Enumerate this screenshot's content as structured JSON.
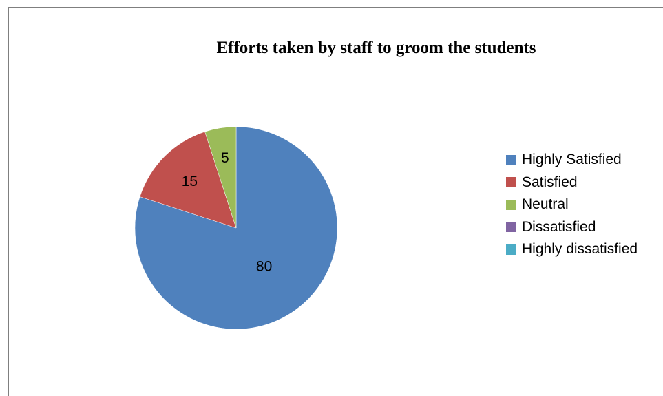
{
  "chart_data": {
    "type": "pie",
    "title": "Efforts taken by staff to groom the students",
    "categories": [
      "Highly Satisfied",
      "Satisfied",
      "Neutral",
      "Dissatisfied",
      "Highly dissatisfied"
    ],
    "values": [
      80,
      15,
      5,
      0,
      0
    ],
    "data_labels": [
      "80",
      "15",
      "5",
      "",
      ""
    ],
    "colors": [
      "#4f81bd",
      "#c0504d",
      "#9bbb59",
      "#8064a2",
      "#4bacc6"
    ],
    "legend_position": "right"
  }
}
